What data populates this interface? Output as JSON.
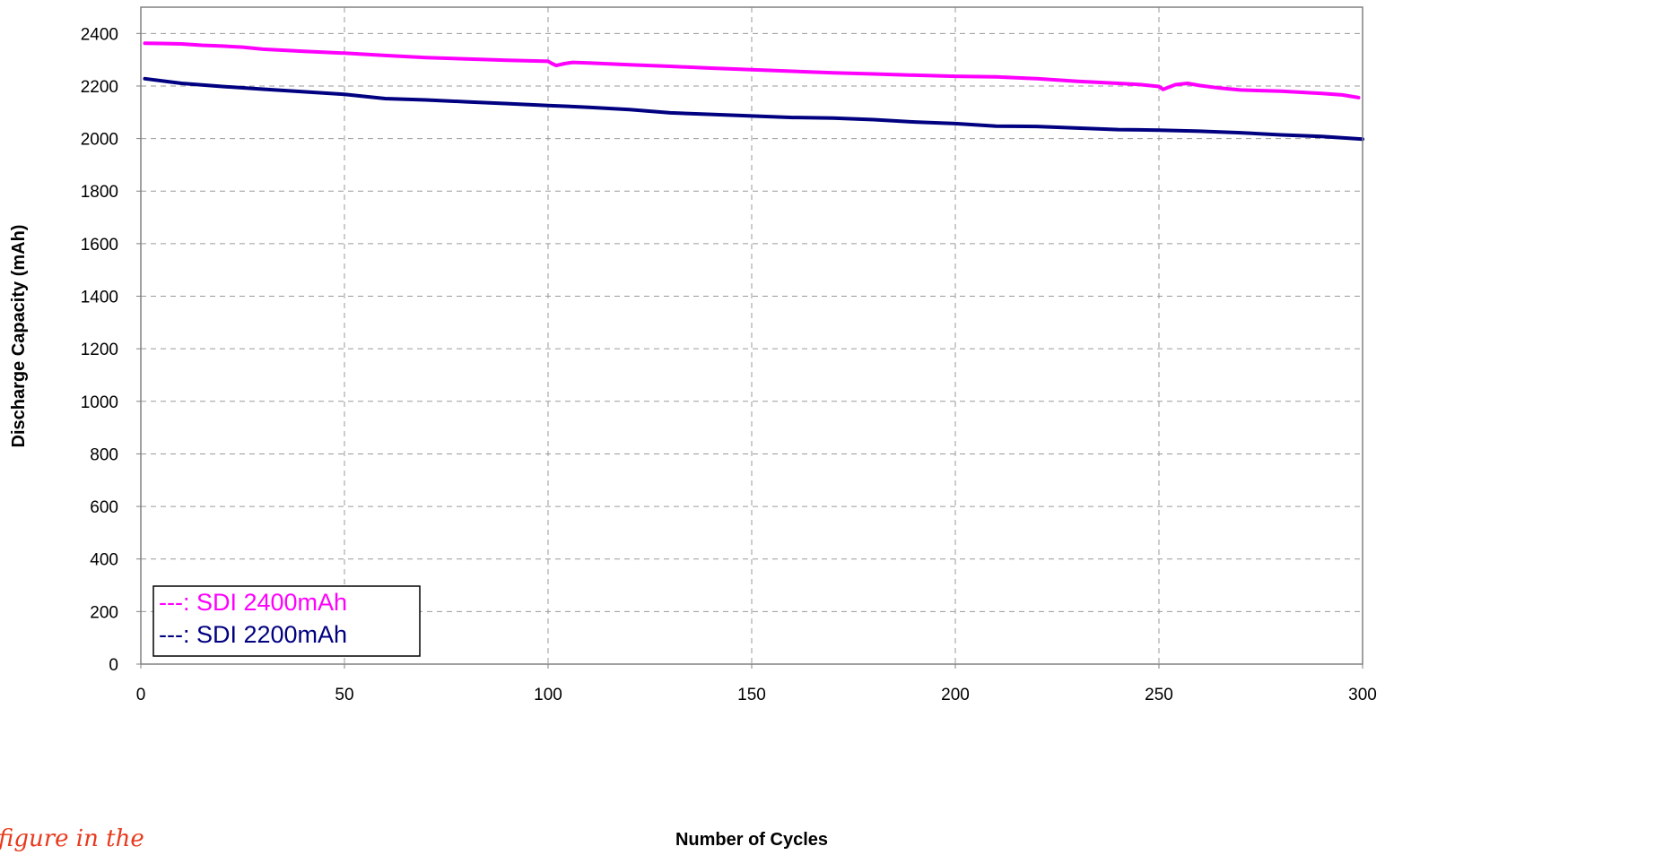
{
  "chart_data": {
    "type": "line",
    "xlabel": "Number of Cycles",
    "ylabel": "Discharge Capacity (mAh)",
    "xlim": [
      0,
      300
    ],
    "ylim": [
      0,
      2500
    ],
    "xticks": [
      "0",
      "50",
      "100",
      "150",
      "200",
      "250",
      "300"
    ],
    "yticks": [
      "0",
      "200",
      "400",
      "600",
      "800",
      "1000",
      "1200",
      "1400",
      "1600",
      "1800",
      "2000",
      "2200",
      "2400"
    ],
    "grid": "dashed, both axes",
    "legend_position": "bottom-left",
    "series": [
      {
        "name": "---: SDI 2400mAh",
        "color": "#ff00ff",
        "x": [
          1,
          5,
          10,
          15,
          20,
          25,
          30,
          40,
          50,
          60,
          70,
          80,
          90,
          100,
          101,
          102,
          104,
          106,
          110,
          120,
          130,
          140,
          150,
          160,
          170,
          180,
          190,
          200,
          210,
          220,
          230,
          240,
          245,
          250,
          251,
          252,
          254,
          257,
          260,
          265,
          270,
          280,
          290,
          295,
          299
        ],
        "values": [
          2363,
          2362,
          2360,
          2355,
          2352,
          2348,
          2340,
          2332,
          2325,
          2316,
          2308,
          2303,
          2298,
          2294,
          2285,
          2278,
          2285,
          2290,
          2288,
          2281,
          2275,
          2268,
          2262,
          2256,
          2250,
          2246,
          2241,
          2237,
          2235,
          2228,
          2218,
          2210,
          2206,
          2198,
          2187,
          2193,
          2205,
          2210,
          2202,
          2192,
          2185,
          2180,
          2172,
          2166,
          2156
        ]
      },
      {
        "name": "---: SDI 2200mAh",
        "color": "#000080",
        "x": [
          1,
          10,
          20,
          30,
          40,
          50,
          60,
          70,
          80,
          90,
          100,
          110,
          120,
          130,
          140,
          150,
          160,
          170,
          180,
          190,
          200,
          210,
          220,
          230,
          240,
          250,
          260,
          270,
          280,
          290,
          300
        ],
        "values": [
          2228,
          2210,
          2198,
          2188,
          2178,
          2168,
          2152,
          2147,
          2140,
          2133,
          2126,
          2119,
          2110,
          2098,
          2092,
          2086,
          2080,
          2078,
          2072,
          2063,
          2057,
          2047,
          2046,
          2040,
          2034,
          2032,
          2028,
          2022,
          2014,
          2008,
          1998
        ]
      }
    ]
  },
  "footer_note": "figure in the"
}
